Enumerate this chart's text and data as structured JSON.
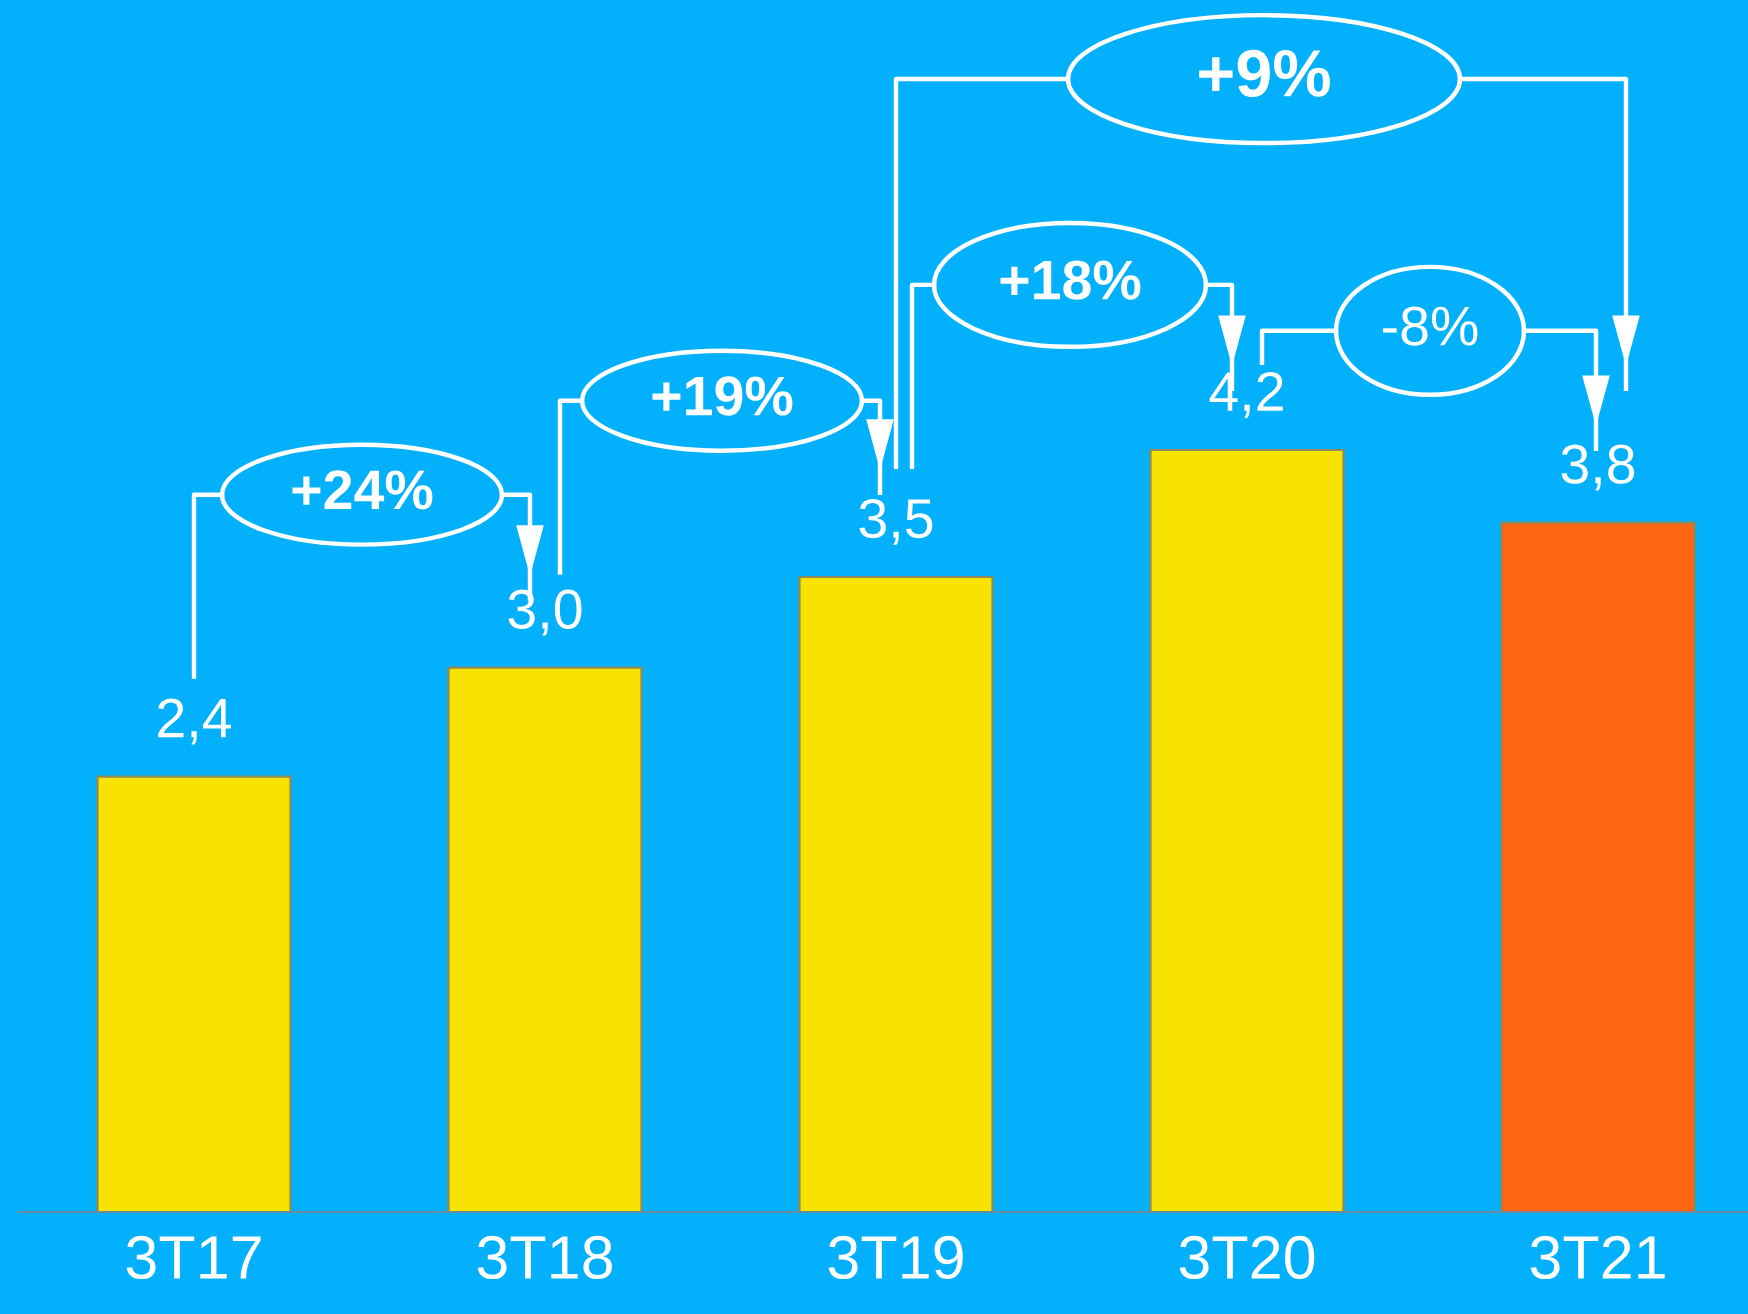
{
  "chart_data": {
    "type": "bar",
    "categories": [
      "3T17",
      "3T18",
      "3T19",
      "3T20",
      "3T21"
    ],
    "values": [
      2.4,
      3.0,
      3.5,
      4.2,
      3.8
    ],
    "value_labels": [
      "2,4",
      "3,0",
      "3,5",
      "4,2",
      "3,8"
    ],
    "colors": [
      "#f7e200",
      "#f7e200",
      "#f7e200",
      "#f7e200",
      "#fc6512"
    ],
    "annotations": [
      "+24%",
      "+19%",
      "+18%",
      "-8%",
      "+9%"
    ],
    "grid": false,
    "legend": false
  }
}
